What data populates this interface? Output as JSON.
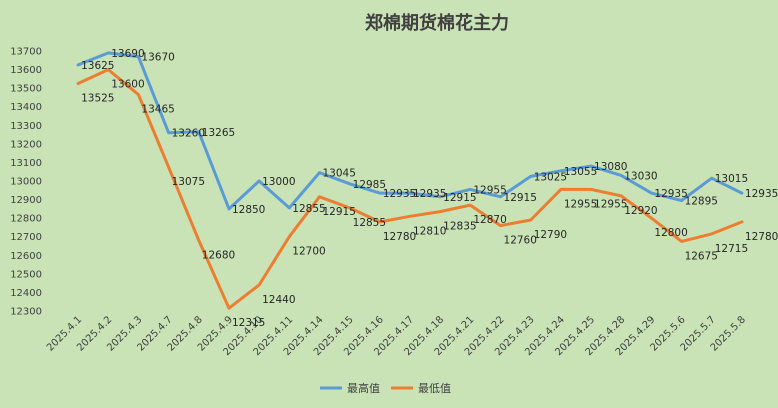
{
  "chart_data": {
    "type": "line",
    "title": "郑棉期货棉花主力",
    "categories": [
      "2025.4.1",
      "2025.4.2",
      "2025.4.3",
      "2025.4.7",
      "2025.4.8",
      "2025.4.9",
      "2025.4.10",
      "2025.4.11",
      "2025.4.14",
      "2025.4.15",
      "2025.4.16",
      "2025.4.17",
      "2025.4.18",
      "2025.4.21",
      "2025.4.22",
      "2025.4.23",
      "2025.4.24",
      "2025.4.25",
      "2025.4.28",
      "2025.4.29",
      "2025.5.6",
      "2025.5.7",
      "2025.5.8"
    ],
    "series": [
      {
        "name": "最高值",
        "color": "#5b9bd5",
        "values": [
          13625,
          13690,
          13670,
          13260,
          13265,
          12850,
          13000,
          12855,
          13045,
          12985,
          12935,
          12935,
          12915,
          12955,
          12915,
          13025,
          13055,
          13080,
          13030,
          12935,
          12895,
          13015,
          12935
        ]
      },
      {
        "name": "最低值",
        "color": "#ed7d31",
        "values": [
          13525,
          13600,
          13465,
          13075,
          12680,
          12315,
          12440,
          12700,
          12915,
          12855,
          12780,
          12810,
          12835,
          12870,
          12760,
          12790,
          12955,
          12955,
          12920,
          12800,
          12675,
          12715,
          12780
        ]
      }
    ],
    "ylim": [
      12300,
      13700
    ],
    "yticks": [
      12300,
      12400,
      12500,
      12600,
      12700,
      12800,
      12900,
      13000,
      13100,
      13200,
      13300,
      13400,
      13500,
      13600,
      13700
    ],
    "xlabel": "",
    "ylabel": "",
    "legend": "bottom-center",
    "grid": false
  }
}
